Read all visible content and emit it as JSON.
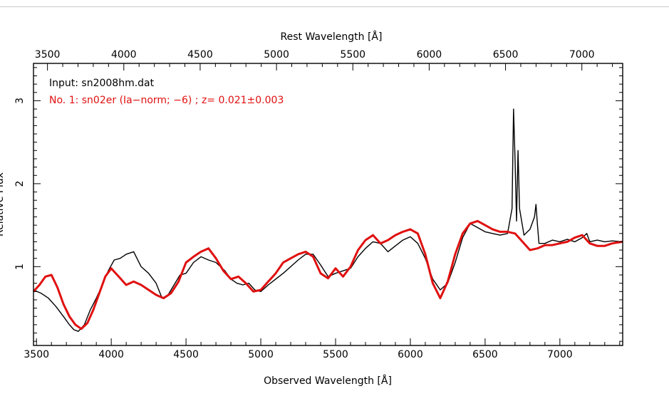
{
  "chart_data": {
    "type": "line",
    "title": "",
    "xlabel": "Observed Wavelength [Å]",
    "ylabel": "Relative Flux",
    "top_xlabel": "Rest Wavelength [Å]",
    "xlim": [
      3480,
      7420
    ],
    "ylim": [
      0.05,
      3.45
    ],
    "redshift": 0.021,
    "x_ticks": [
      3500,
      4000,
      4500,
      5000,
      5500,
      6000,
      6500,
      7000
    ],
    "x_tick_labels": [
      "3500",
      "4000",
      "4500",
      "5000",
      "5500",
      "6000",
      "6500",
      "7000"
    ],
    "top_ticks": [
      3500,
      4000,
      4500,
      5000,
      5500,
      6000,
      6500,
      7000
    ],
    "top_tick_labels": [
      "3500",
      "4000",
      "4500",
      "5000",
      "5500",
      "6000",
      "6500",
      "7000"
    ],
    "y_ticks": [
      1,
      2,
      3
    ],
    "y_tick_labels": [
      "1",
      "2",
      "3"
    ],
    "grid": false,
    "annotations": [
      {
        "text": "Input: sn2008hm.dat",
        "color": "#000000"
      },
      {
        "text": "No. 1: sn02er (Ia−norm;  −6) ; z= 0.021±0.003",
        "color": "#e01010"
      }
    ],
    "series": [
      {
        "color": "#000000",
        "x": [
          3480,
          3530,
          3580,
          3630,
          3680,
          3720,
          3750,
          3780,
          3820,
          3860,
          3900,
          3940,
          3980,
          4020,
          4060,
          4100,
          4150,
          4200,
          4250,
          4300,
          4340,
          4380,
          4420,
          4460,
          4500,
          4550,
          4600,
          4650,
          4700,
          4760,
          4800,
          4840,
          4880,
          4920,
          4960,
          5000,
          5050,
          5100,
          5150,
          5200,
          5250,
          5300,
          5350,
          5400,
          5450,
          5500,
          5550,
          5600,
          5650,
          5700,
          5750,
          5800,
          5850,
          5900,
          5950,
          6000,
          6050,
          6100,
          6150,
          6200,
          6250,
          6300,
          6350,
          6400,
          6440,
          6470,
          6500,
          6550,
          6600,
          6650,
          6680,
          6690,
          6700,
          6710,
          6720,
          6730,
          6760,
          6800,
          6830,
          6840,
          6850,
          6860,
          6900,
          6950,
          7000,
          7050,
          7100,
          7150,
          7180,
          7200,
          7250,
          7300,
          7350,
          7420
        ],
        "y": [
          0.72,
          0.68,
          0.62,
          0.52,
          0.4,
          0.3,
          0.24,
          0.22,
          0.3,
          0.48,
          0.62,
          0.78,
          0.95,
          1.08,
          1.1,
          1.15,
          1.18,
          1.0,
          0.92,
          0.8,
          0.62,
          0.66,
          0.78,
          0.9,
          0.92,
          1.05,
          1.12,
          1.08,
          1.05,
          0.95,
          0.85,
          0.8,
          0.78,
          0.8,
          0.72,
          0.7,
          0.78,
          0.85,
          0.92,
          1.0,
          1.08,
          1.15,
          1.15,
          1.02,
          0.88,
          0.92,
          0.95,
          0.98,
          1.12,
          1.22,
          1.3,
          1.28,
          1.18,
          1.25,
          1.32,
          1.36,
          1.28,
          1.1,
          0.85,
          0.72,
          0.8,
          1.05,
          1.35,
          1.52,
          1.48,
          1.45,
          1.42,
          1.4,
          1.38,
          1.4,
          1.7,
          2.9,
          2.3,
          1.55,
          2.4,
          1.7,
          1.38,
          1.45,
          1.6,
          1.75,
          1.5,
          1.28,
          1.28,
          1.32,
          1.3,
          1.33,
          1.3,
          1.35,
          1.4,
          1.3,
          1.32,
          1.3,
          1.31,
          1.3
        ]
      },
      {
        "color": "#e01010",
        "x": [
          3480,
          3520,
          3560,
          3600,
          3640,
          3680,
          3720,
          3760,
          3800,
          3840,
          3880,
          3920,
          3960,
          4000,
          4050,
          4100,
          4150,
          4200,
          4250,
          4300,
          4350,
          4400,
          4450,
          4500,
          4550,
          4600,
          4650,
          4700,
          4750,
          4800,
          4850,
          4900,
          4950,
          5000,
          5050,
          5100,
          5150,
          5200,
          5250,
          5300,
          5350,
          5400,
          5450,
          5500,
          5550,
          5600,
          5650,
          5700,
          5750,
          5800,
          5850,
          5900,
          5950,
          6000,
          6050,
          6100,
          6150,
          6200,
          6250,
          6300,
          6350,
          6400,
          6450,
          6500,
          6550,
          6600,
          6650,
          6700,
          6750,
          6800,
          6850,
          6900,
          6950,
          7000,
          7050,
          7100,
          7150,
          7180,
          7200,
          7250,
          7300,
          7350,
          7420
        ],
        "y": [
          0.7,
          0.78,
          0.88,
          0.9,
          0.75,
          0.55,
          0.4,
          0.3,
          0.25,
          0.32,
          0.48,
          0.68,
          0.88,
          0.98,
          0.88,
          0.78,
          0.82,
          0.78,
          0.72,
          0.66,
          0.62,
          0.68,
          0.82,
          1.05,
          1.12,
          1.18,
          1.22,
          1.1,
          0.95,
          0.85,
          0.88,
          0.8,
          0.7,
          0.72,
          0.82,
          0.92,
          1.05,
          1.1,
          1.15,
          1.18,
          1.12,
          0.92,
          0.86,
          0.98,
          0.88,
          1.0,
          1.2,
          1.32,
          1.38,
          1.28,
          1.32,
          1.38,
          1.42,
          1.45,
          1.4,
          1.15,
          0.8,
          0.62,
          0.82,
          1.15,
          1.4,
          1.52,
          1.55,
          1.5,
          1.45,
          1.42,
          1.42,
          1.4,
          1.3,
          1.2,
          1.22,
          1.26,
          1.26,
          1.28,
          1.3,
          1.35,
          1.38,
          1.32,
          1.28,
          1.25,
          1.25,
          1.28,
          1.3
        ]
      }
    ]
  }
}
